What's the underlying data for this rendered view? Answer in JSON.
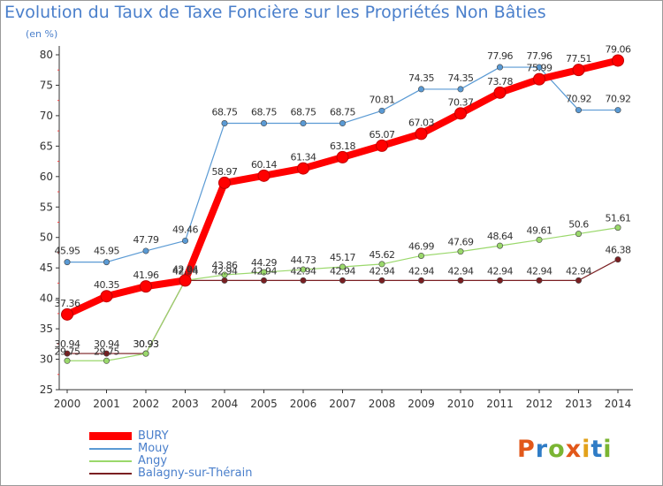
{
  "title": "Evolution du Taux de Taxe Foncière sur les Propriétés Non Bâties",
  "subtitle": "(en %)",
  "logo": {
    "letters": [
      "P",
      "r",
      "o",
      "x",
      "i",
      "t",
      "i"
    ],
    "colors": [
      "#e2581a",
      "#2f7cc6",
      "#7ab533",
      "#e2581a",
      "#e2a11a",
      "#2f7cc6",
      "#7ab533"
    ]
  },
  "chart_data": {
    "type": "line",
    "x": [
      2000,
      2001,
      2002,
      2003,
      2004,
      2005,
      2006,
      2007,
      2008,
      2009,
      2010,
      2011,
      2012,
      2013,
      2014
    ],
    "ylim": [
      25,
      80
    ],
    "yticks": [
      25,
      30,
      35,
      40,
      45,
      50,
      55,
      60,
      65,
      70,
      75,
      80
    ],
    "grid": false,
    "series": [
      {
        "name": "BURY",
        "color": "#ff0000",
        "values": [
          37.36,
          40.35,
          41.96,
          42.94,
          58.97,
          60.14,
          61.34,
          63.18,
          65.07,
          67.03,
          70.37,
          73.78,
          75.99,
          77.51,
          79.06
        ],
        "labels": [
          "37.36",
          "40.35",
          "41.96",
          "42.94",
          "58.97",
          "60.14",
          "61.34",
          "63.18",
          "65.07",
          "67.03",
          "70.37",
          "73.78",
          "75.99",
          "77.51",
          "79.06"
        ]
      },
      {
        "name": "Mouy",
        "color": "#5a9ad4",
        "values": [
          45.95,
          45.95,
          47.79,
          49.46,
          68.75,
          68.75,
          68.75,
          68.75,
          70.81,
          74.35,
          74.35,
          77.96,
          77.96,
          70.92,
          70.92
        ],
        "labels": [
          "45.95",
          "45.95",
          "47.79",
          "49.46",
          "68.75",
          "68.75",
          "68.75",
          "68.75",
          "70.81",
          "74.35",
          "74.35",
          "77.96",
          "77.96",
          "70.92",
          "70.92"
        ]
      },
      {
        "name": "Angy",
        "color": "#9ad86b",
        "values": [
          29.75,
          29.75,
          30.93,
          42.94,
          43.86,
          44.29,
          44.73,
          45.17,
          45.62,
          46.99,
          47.69,
          48.64,
          49.61,
          50.6,
          51.61
        ],
        "labels": [
          "29.75",
          "29.75",
          "30.93",
          "42.94",
          "43.86",
          "44.29",
          "44.73",
          "45.17",
          "45.62",
          "46.99",
          "47.69",
          "48.64",
          "49.61",
          "50.6",
          "51.61"
        ]
      },
      {
        "name": "Balagny-sur-Thérain",
        "color": "#7a1f22",
        "values": [
          30.94,
          30.94,
          30.93,
          42.94,
          42.94,
          42.94,
          42.94,
          42.94,
          42.94,
          42.94,
          42.94,
          42.94,
          42.94,
          42.94,
          46.38
        ],
        "labels": [
          "30.94",
          "30.94",
          "30.93",
          "42.94",
          "42.94",
          "42.94",
          "42.94",
          "42.94",
          "42.94",
          "42.94",
          "42.94",
          "42.94",
          "42.94",
          "42.94",
          "46.38"
        ]
      }
    ]
  }
}
